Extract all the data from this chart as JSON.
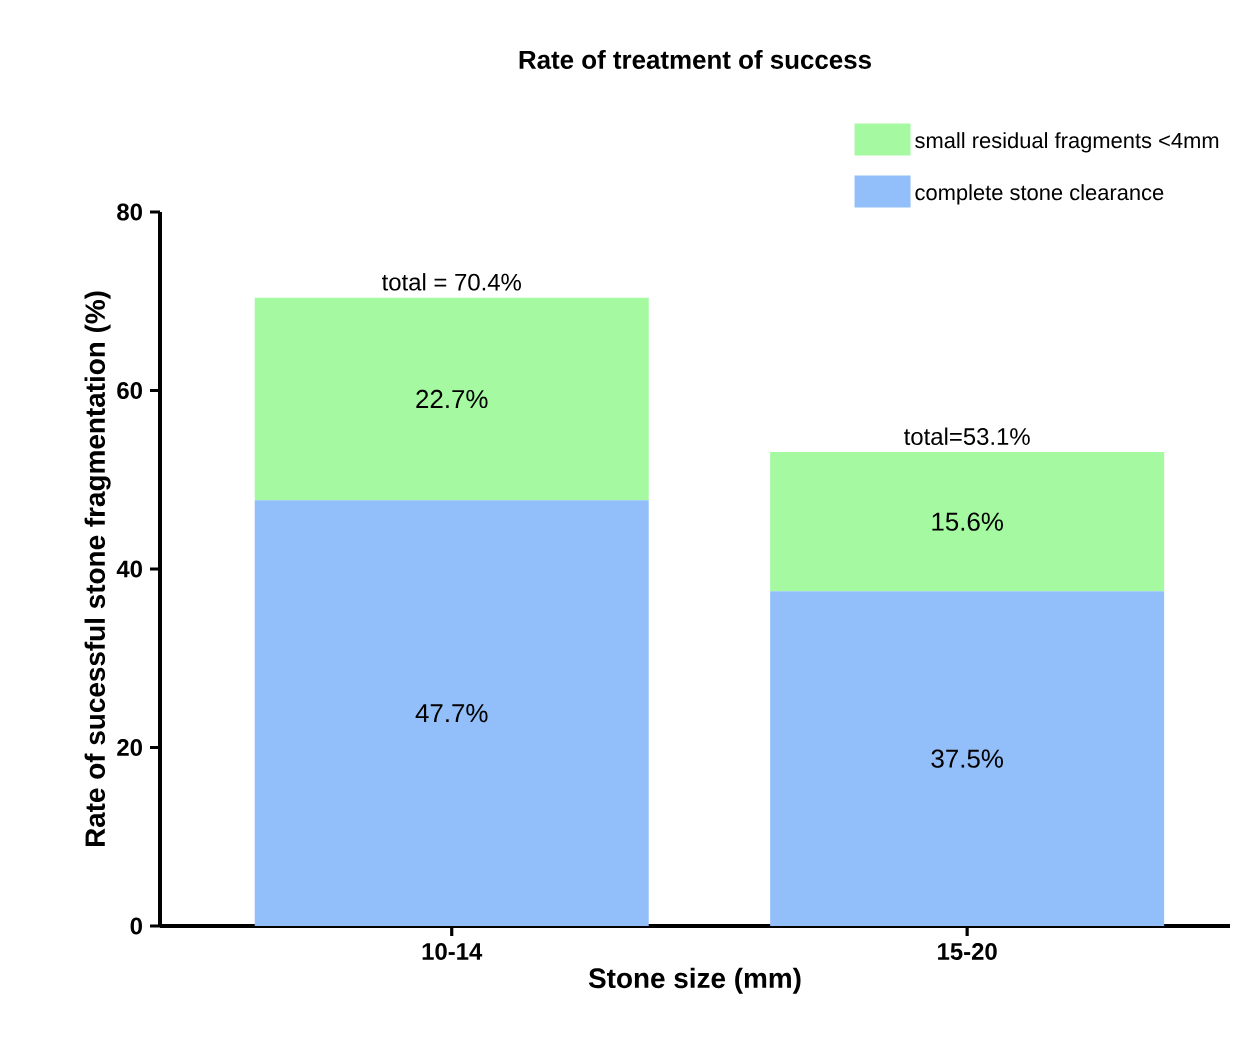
{
  "chart_data": {
    "type": "bar",
    "stacked": true,
    "title": "Rate of treatment of success",
    "xlabel": "Stone size (mm)",
    "ylabel": "Rate of sucessful stone fragmentation (%)",
    "categories": [
      "10-14",
      "15-20"
    ],
    "series": [
      {
        "name": "complete stone clearance",
        "color": "#92bffa",
        "values": [
          47.7,
          37.5
        ],
        "value_labels": [
          "47.7%",
          "37.5%"
        ]
      },
      {
        "name": "small residual fragments <4mm",
        "color": "#a5f9a1",
        "values": [
          22.7,
          15.6
        ],
        "value_labels": [
          "22.7%",
          "15.6%"
        ]
      }
    ],
    "totals": [
      "total = 70.4%",
      "total=53.1%"
    ],
    "ylim": [
      0,
      80
    ],
    "yticks": [
      0,
      20,
      40,
      60,
      80
    ],
    "legend": "top right"
  }
}
